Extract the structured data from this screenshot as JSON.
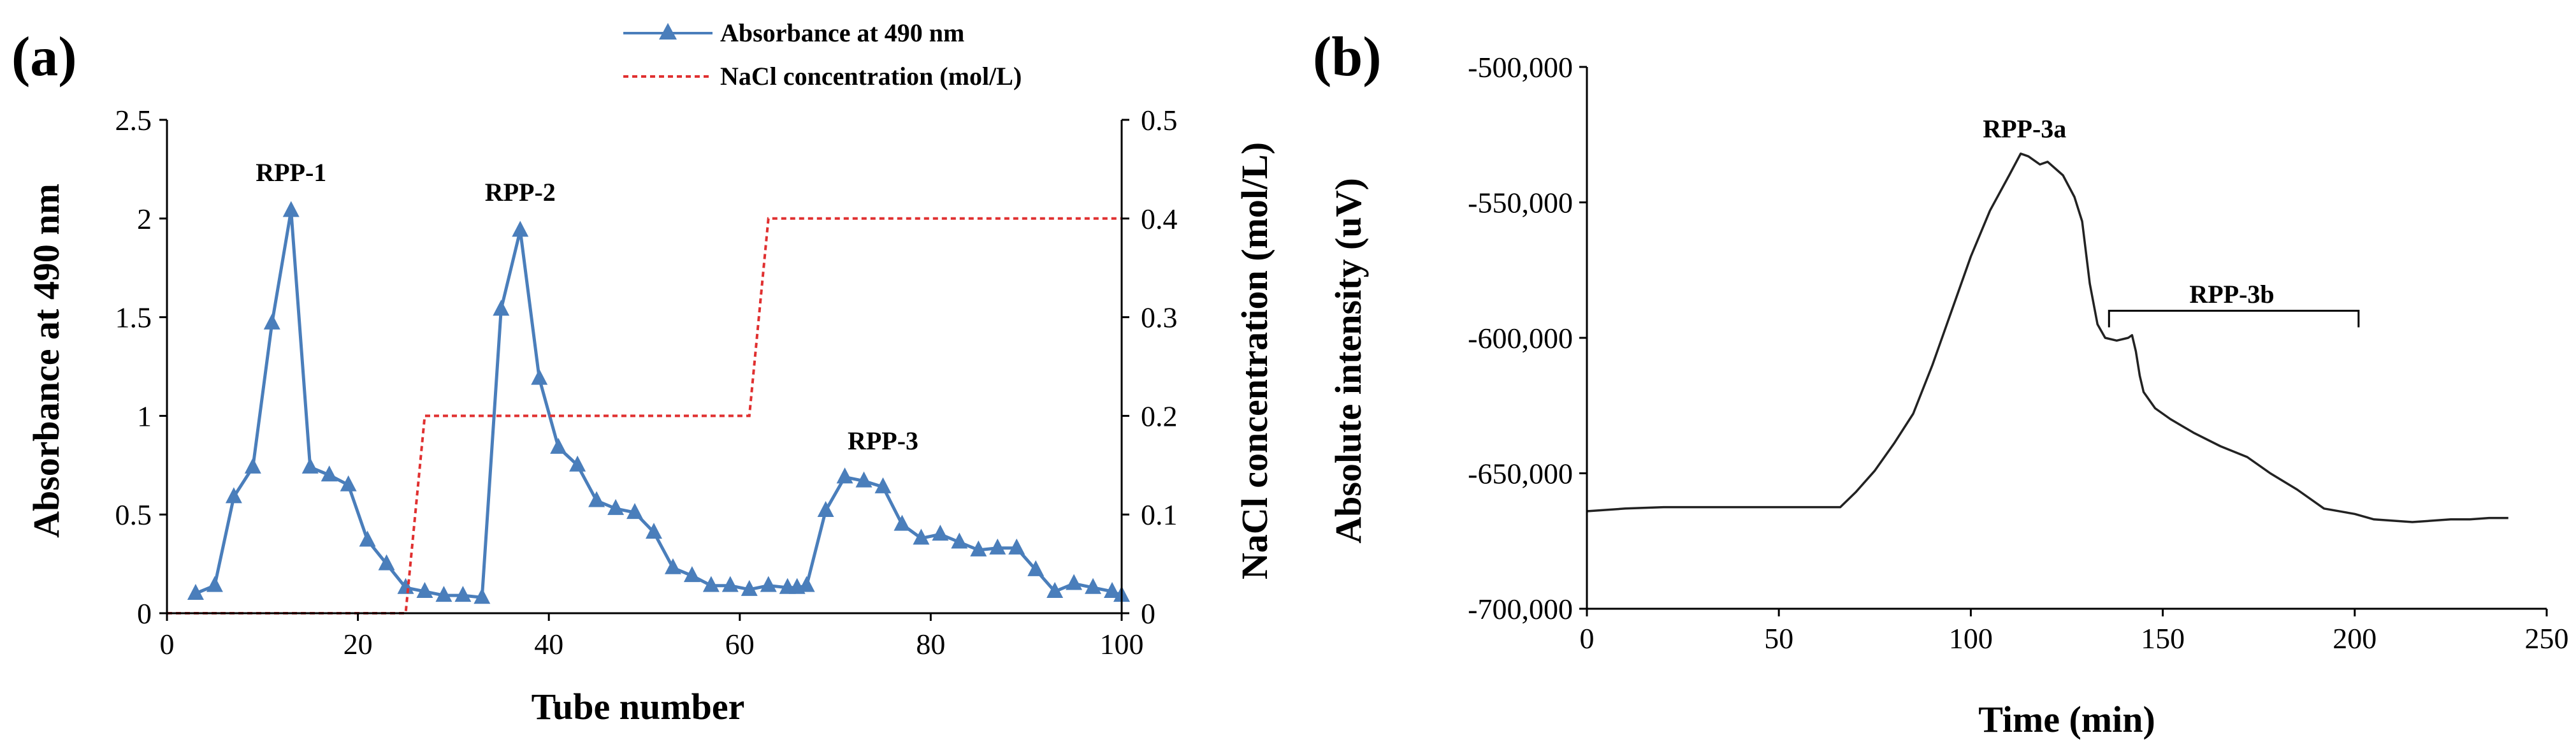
{
  "chart_data": [
    {
      "panel_label": "(a)",
      "type": "line",
      "xlabel": "Tube number",
      "ylabel": "Absorbance at 490 nm",
      "y2label": "NaCl concentration (mol/L)",
      "xlim": [
        0,
        100
      ],
      "ylim": [
        0,
        2.5
      ],
      "y2lim": [
        0,
        0.5
      ],
      "x_ticks": [
        "0",
        "20",
        "40",
        "60",
        "80",
        "100"
      ],
      "y_ticks": [
        "0",
        "0.5",
        "1",
        "1.5",
        "2",
        "2.5"
      ],
      "y2_ticks": [
        "0",
        "0.1",
        "0.2",
        "0.3",
        "0.4",
        "0.5"
      ],
      "legend": [
        "Absorbance at 490 nm",
        "NaCl concentration (mol/L)"
      ],
      "series": [
        {
          "name": "Absorbance at 490 nm",
          "axis": "left",
          "color": "#4a7ebb",
          "marker": "triangle",
          "x": [
            3,
            5,
            7,
            9,
            11,
            13,
            15,
            17,
            19,
            21,
            23,
            25,
            27,
            29,
            31,
            33,
            35,
            37,
            39,
            41,
            43,
            45,
            47,
            49,
            51,
            53,
            55,
            57,
            59,
            61,
            63,
            65,
            66,
            67,
            69,
            71,
            73,
            75,
            77,
            79,
            81,
            83,
            85,
            87,
            89,
            91,
            93,
            95,
            97,
            99,
            100
          ],
          "y": [
            0.1,
            0.14,
            0.59,
            0.74,
            1.47,
            2.04,
            0.74,
            0.7,
            0.65,
            0.37,
            0.25,
            0.13,
            0.11,
            0.09,
            0.09,
            0.08,
            1.54,
            1.94,
            1.19,
            0.84,
            0.75,
            0.57,
            0.53,
            0.51,
            0.41,
            0.23,
            0.19,
            0.14,
            0.14,
            0.12,
            0.14,
            0.13,
            0.13,
            0.14,
            0.52,
            0.69,
            0.67,
            0.64,
            0.45,
            0.38,
            0.4,
            0.36,
            0.32,
            0.33,
            0.33,
            0.22,
            0.11,
            0.15,
            0.13,
            0.11,
            0.09
          ]
        },
        {
          "name": "NaCl concentration (mol/L)",
          "axis": "right",
          "color": "#e03030",
          "style": "dashed",
          "x": [
            0,
            25,
            27,
            61,
            63,
            100
          ],
          "y": [
            0,
            0,
            0.2,
            0.2,
            0.4,
            0.4
          ]
        }
      ],
      "annotations": [
        {
          "text": "RPP-1",
          "x": 13,
          "y": 2.19
        },
        {
          "text": "RPP-2",
          "x": 37,
          "y": 2.09
        },
        {
          "text": "RPP-3",
          "x": 75,
          "y": 0.83
        }
      ]
    },
    {
      "panel_label": "(b)",
      "type": "line",
      "xlabel": "Time (min)",
      "ylabel": "Absolute intensity (uV)",
      "xlim": [
        0,
        250
      ],
      "ylim": [
        -700000,
        -500000
      ],
      "x_ticks": [
        "0",
        "50",
        "100",
        "150",
        "200",
        "250"
      ],
      "y_ticks": [
        "-700,000",
        "-650,000",
        "-600,000",
        "-550,000",
        "-500,000"
      ],
      "series": [
        {
          "name": "Absolute intensity",
          "color": "#222222",
          "x": [
            0,
            10,
            20,
            30,
            40,
            50,
            60,
            66,
            70,
            75,
            80,
            85,
            90,
            95,
            100,
            105,
            110,
            113,
            115,
            118,
            120,
            124,
            127,
            129,
            131,
            133,
            135,
            138,
            141,
            142,
            143,
            144,
            145,
            148,
            152,
            158,
            165,
            172,
            178,
            185,
            192,
            200,
            205,
            210,
            215,
            220,
            225,
            230,
            235,
            240
          ],
          "y": [
            -664000,
            -663000,
            -662500,
            -662500,
            -662500,
            -662500,
            -662500,
            -662500,
            -657000,
            -649000,
            -639000,
            -628000,
            -610000,
            -590000,
            -570000,
            -553000,
            -540000,
            -532000,
            -533000,
            -536000,
            -535000,
            -540000,
            -548000,
            -557000,
            -580000,
            -595000,
            -600000,
            -601000,
            -600000,
            -599000,
            -605000,
            -614000,
            -620000,
            -626000,
            -630000,
            -635000,
            -640000,
            -644000,
            -650000,
            -656000,
            -663000,
            -665000,
            -667000,
            -667500,
            -668000,
            -667500,
            -667000,
            -667000,
            -666500,
            -666500
          ]
        }
      ],
      "annotations": [
        {
          "text": "RPP-3a",
          "x": 114,
          "y": -526000
        },
        {
          "text": "RPP-3b",
          "x": 168,
          "y": -587000,
          "bracket_x": [
            136,
            201
          ],
          "bracket_y": -590000
        }
      ]
    }
  ]
}
